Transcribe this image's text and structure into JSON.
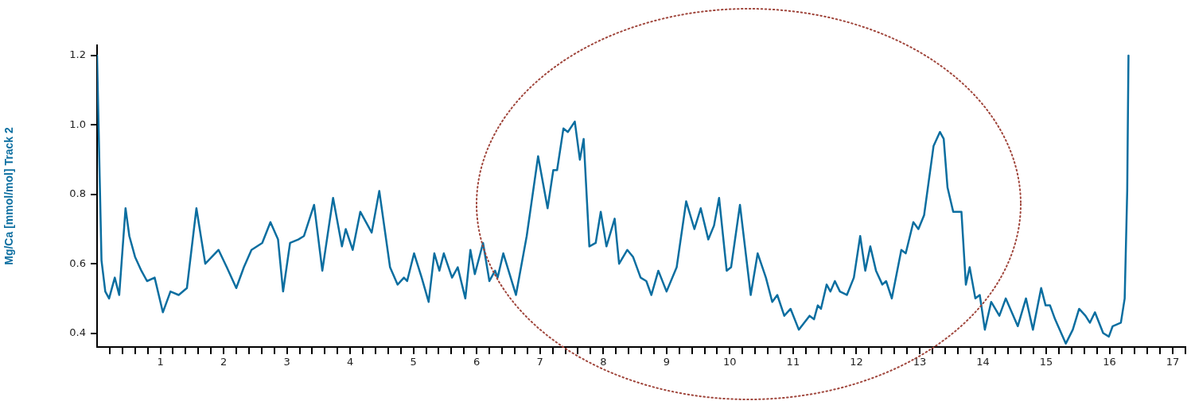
{
  "chart_data": {
    "type": "line",
    "ylabel": "Mg/Ca [mmol/mol] Track 2",
    "xlim": [
      0,
      17.2
    ],
    "ylim": [
      0.36,
      1.23
    ],
    "xticks": [
      {
        "value": 0.2,
        "label": null
      },
      {
        "value": 0.4,
        "label": null
      },
      {
        "value": 0.6,
        "label": null
      },
      {
        "value": 0.8,
        "label": null
      },
      1,
      {
        "value": 1.2,
        "label": null
      },
      {
        "value": 1.4,
        "label": null
      },
      {
        "value": 1.6,
        "label": null
      },
      {
        "value": 1.8,
        "label": null
      },
      2,
      {
        "value": 2.2,
        "label": null
      },
      {
        "value": 2.4,
        "label": null
      },
      {
        "value": 2.6,
        "label": null
      },
      {
        "value": 2.8,
        "label": null
      },
      3,
      {
        "value": 3.2,
        "label": null
      },
      {
        "value": 3.4,
        "label": null
      },
      {
        "value": 3.6,
        "label": null
      },
      {
        "value": 3.8,
        "label": null
      },
      4,
      {
        "value": 4.2,
        "label": null
      },
      {
        "value": 4.4,
        "label": null
      },
      {
        "value": 4.6,
        "label": null
      },
      {
        "value": 4.8,
        "label": null
      },
      5,
      {
        "value": 5.2,
        "label": null
      },
      {
        "value": 5.4,
        "label": null
      },
      {
        "value": 5.6,
        "label": null
      },
      {
        "value": 5.8,
        "label": null
      },
      6,
      {
        "value": 6.2,
        "label": null
      },
      {
        "value": 6.4,
        "label": null
      },
      {
        "value": 6.6,
        "label": null
      },
      {
        "value": 6.8,
        "label": null
      },
      7,
      {
        "value": 7.2,
        "label": null
      },
      {
        "value": 7.4,
        "label": null
      },
      {
        "value": 7.6,
        "label": null
      },
      {
        "value": 7.8,
        "label": null
      },
      8,
      {
        "value": 8.2,
        "label": null
      },
      {
        "value": 8.4,
        "label": null
      },
      {
        "value": 8.6,
        "label": null
      },
      {
        "value": 8.8,
        "label": null
      },
      9,
      {
        "value": 9.2,
        "label": null
      },
      {
        "value": 9.4,
        "label": null
      },
      {
        "value": 9.6,
        "label": null
      },
      {
        "value": 9.8,
        "label": null
      },
      10,
      {
        "value": 10.2,
        "label": null
      },
      {
        "value": 10.4,
        "label": null
      },
      {
        "value": 10.6,
        "label": null
      },
      {
        "value": 10.8,
        "label": null
      },
      11,
      {
        "value": 11.2,
        "label": null
      },
      {
        "value": 11.4,
        "label": null
      },
      {
        "value": 11.6,
        "label": null
      },
      {
        "value": 11.8,
        "label": null
      },
      12,
      {
        "value": 12.2,
        "label": null
      },
      {
        "value": 12.4,
        "label": null
      },
      {
        "value": 12.6,
        "label": null
      },
      {
        "value": 12.8,
        "label": null
      },
      13,
      {
        "value": 13.2,
        "label": null
      },
      {
        "value": 13.4,
        "label": null
      },
      {
        "value": 13.6,
        "label": null
      },
      {
        "value": 13.8,
        "label": null
      },
      14,
      {
        "value": 14.2,
        "label": null
      },
      {
        "value": 14.4,
        "label": null
      },
      {
        "value": 14.6,
        "label": null
      },
      {
        "value": 14.8,
        "label": null
      },
      15,
      {
        "value": 15.2,
        "label": null
      },
      {
        "value": 15.4,
        "label": null
      },
      {
        "value": 15.6,
        "label": null
      },
      {
        "value": 15.8,
        "label": null
      },
      16,
      {
        "value": 16.2,
        "label": null
      },
      {
        "value": 16.4,
        "label": null
      },
      {
        "value": 16.6,
        "label": null
      },
      {
        "value": 16.8,
        "label": null
      },
      17,
      {
        "value": 17.2,
        "label": null
      }
    ],
    "yticks": [
      0.4,
      0.6,
      0.8,
      {
        "value": 1,
        "label": "1.0"
      },
      1.2
    ],
    "grid": false,
    "legend": false,
    "marker": "none",
    "line_style": "solid",
    "series": [
      {
        "color": "#0b6ea0",
        "x": [
          0,
          0.07,
          0.13,
          0.19,
          0.28,
          0.35,
          0.45,
          0.51,
          0.6,
          0.7,
          0.79,
          0.91,
          1.04,
          1.16,
          1.29,
          1.42,
          1.57,
          1.71,
          1.92,
          2.05,
          2.2,
          2.32,
          2.44,
          2.61,
          2.74,
          2.86,
          2.94,
          3.05,
          3.18,
          3.27,
          3.43,
          3.56,
          3.73,
          3.87,
          3.93,
          4.04,
          4.16,
          4.34,
          4.46,
          4.63,
          4.75,
          4.85,
          4.9,
          5.01,
          5.13,
          5.24,
          5.33,
          5.41,
          5.48,
          5.61,
          5.7,
          5.82,
          5.9,
          5.97,
          6.1,
          6.2,
          6.29,
          6.33,
          6.42,
          6.62,
          6.79,
          6.97,
          7.12,
          7.21,
          7.27,
          7.37,
          7.44,
          7.55,
          7.63,
          7.69,
          7.78,
          7.88,
          7.96,
          8.05,
          8.18,
          8.25,
          8.38,
          8.47,
          8.59,
          8.68,
          8.76,
          8.87,
          9,
          9.16,
          9.31,
          9.44,
          9.54,
          9.66,
          9.75,
          9.83,
          9.95,
          10.02,
          10.16,
          10.33,
          10.44,
          10.57,
          10.67,
          10.75,
          10.86,
          10.96,
          11.09,
          11.26,
          11.33,
          11.39,
          11.44,
          11.53,
          11.59,
          11.66,
          11.74,
          11.85,
          11.96,
          12.06,
          12.14,
          12.22,
          12.31,
          12.41,
          12.47,
          12.56,
          12.71,
          12.78,
          12.9,
          12.98,
          13.07,
          13.22,
          13.32,
          13.38,
          13.44,
          13.53,
          13.66,
          13.73,
          13.79,
          13.88,
          13.95,
          14.03,
          14.13,
          14.26,
          14.36,
          14.48,
          14.55,
          14.68,
          14.79,
          14.92,
          14.99,
          15.06,
          15.14,
          15.31,
          15.42,
          15.52,
          15.62,
          15.69,
          15.77,
          15.9,
          15.99,
          16.05,
          16.18,
          16.24,
          16.28,
          16.3
        ],
        "values": [
          1.2,
          0.61,
          0.52,
          0.5,
          0.56,
          0.51,
          0.76,
          0.68,
          0.62,
          0.58,
          0.55,
          0.56,
          0.46,
          0.52,
          0.51,
          0.53,
          0.76,
          0.6,
          0.64,
          0.59,
          0.53,
          0.59,
          0.64,
          0.66,
          0.72,
          0.67,
          0.52,
          0.66,
          0.67,
          0.68,
          0.77,
          0.58,
          0.79,
          0.65,
          0.7,
          0.64,
          0.75,
          0.69,
          0.81,
          0.59,
          0.54,
          0.56,
          0.55,
          0.63,
          0.56,
          0.49,
          0.63,
          0.58,
          0.63,
          0.56,
          0.59,
          0.5,
          0.64,
          0.57,
          0.66,
          0.55,
          0.58,
          0.56,
          0.63,
          0.51,
          0.68,
          0.91,
          0.76,
          0.87,
          0.87,
          0.99,
          0.98,
          1.01,
          0.9,
          0.96,
          0.65,
          0.66,
          0.75,
          0.65,
          0.73,
          0.6,
          0.64,
          0.62,
          0.56,
          0.55,
          0.51,
          0.58,
          0.52,
          0.59,
          0.78,
          0.7,
          0.76,
          0.67,
          0.71,
          0.79,
          0.58,
          0.59,
          0.77,
          0.51,
          0.63,
          0.56,
          0.49,
          0.51,
          0.45,
          0.47,
          0.41,
          0.45,
          0.44,
          0.48,
          0.47,
          0.54,
          0.52,
          0.55,
          0.52,
          0.51,
          0.56,
          0.68,
          0.58,
          0.65,
          0.58,
          0.54,
          0.55,
          0.5,
          0.64,
          0.63,
          0.72,
          0.7,
          0.74,
          0.94,
          0.98,
          0.96,
          0.82,
          0.75,
          0.75,
          0.54,
          0.59,
          0.5,
          0.51,
          0.41,
          0.49,
          0.45,
          0.5,
          0.45,
          0.42,
          0.5,
          0.41,
          0.53,
          0.48,
          0.48,
          0.44,
          0.37,
          0.41,
          0.47,
          0.45,
          0.43,
          0.46,
          0.4,
          0.39,
          0.42,
          0.43,
          0.5,
          0.81,
          1.2
        ]
      }
    ]
  }
}
